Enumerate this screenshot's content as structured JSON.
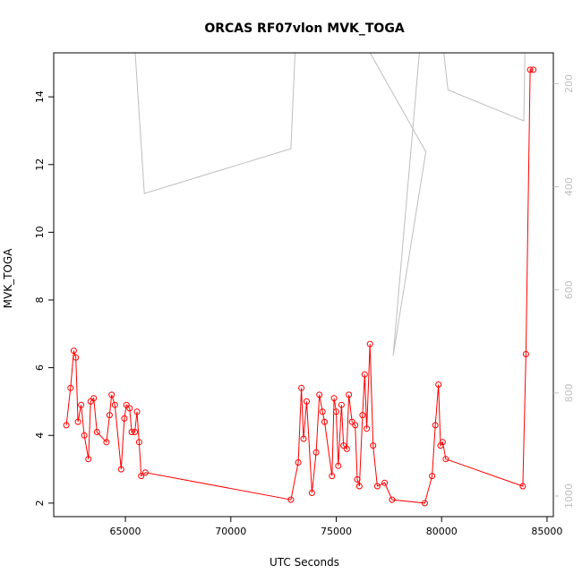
{
  "chart_data": {
    "type": "line",
    "title": "ORCAS RF07vlon MVK_TOGA",
    "xlabel": "UTC Seconds",
    "ylabel": "MVK_TOGA",
    "xlim": [
      61600,
      85300
    ],
    "ylim": [
      1.6,
      15.3
    ],
    "y2lim": [
      1040,
      140
    ],
    "x_ticks": [
      65000,
      70000,
      75000,
      80000,
      85000
    ],
    "y_ticks": [
      2,
      4,
      6,
      8,
      10,
      12,
      14
    ],
    "y2_ticks": [
      200,
      400,
      600,
      800,
      1000
    ],
    "grid": false,
    "series": [
      {
        "color": "#ff0000",
        "marker": "open-circle",
        "axis": "left",
        "points": [
          [
            62200,
            4.3
          ],
          [
            62400,
            5.4
          ],
          [
            62550,
            6.5
          ],
          [
            62650,
            6.3
          ],
          [
            62750,
            4.4
          ],
          [
            62900,
            4.9
          ],
          [
            63050,
            4.0
          ],
          [
            63250,
            3.3
          ],
          [
            63350,
            5.0
          ],
          [
            63500,
            5.1
          ],
          [
            63650,
            4.1
          ],
          [
            64100,
            3.8
          ],
          [
            64250,
            4.6
          ],
          [
            64350,
            5.2
          ],
          [
            64500,
            4.9
          ],
          [
            64800,
            3.0
          ],
          [
            64950,
            4.5
          ],
          [
            65050,
            4.9
          ],
          [
            65200,
            4.8
          ],
          [
            65300,
            4.1
          ],
          [
            65450,
            4.1
          ],
          [
            65550,
            4.7
          ],
          [
            65650,
            3.8
          ],
          [
            65750,
            2.8
          ],
          [
            65950,
            2.9
          ],
          [
            72850,
            2.1
          ],
          [
            73200,
            3.2
          ],
          [
            73350,
            5.4
          ],
          [
            73450,
            3.9
          ],
          [
            73600,
            5.0
          ],
          [
            73850,
            2.3
          ],
          [
            74050,
            3.5
          ],
          [
            74200,
            5.2
          ],
          [
            74350,
            4.7
          ],
          [
            74450,
            4.4
          ],
          [
            74800,
            2.8
          ],
          [
            74900,
            5.1
          ],
          [
            75000,
            4.7
          ],
          [
            75100,
            3.1
          ],
          [
            75250,
            4.9
          ],
          [
            75350,
            3.7
          ],
          [
            75500,
            3.6
          ],
          [
            75600,
            5.2
          ],
          [
            75750,
            4.4
          ],
          [
            75900,
            4.3
          ],
          [
            76000,
            2.7
          ],
          [
            76100,
            2.5
          ],
          [
            76250,
            4.6
          ],
          [
            76350,
            5.8
          ],
          [
            76450,
            4.2
          ],
          [
            76600,
            6.7
          ],
          [
            76750,
            3.7
          ],
          [
            76950,
            2.5
          ],
          [
            77300,
            2.6
          ],
          [
            77650,
            2.1
          ],
          [
            79200,
            2.0
          ],
          [
            79550,
            2.8
          ],
          [
            79700,
            4.3
          ],
          [
            79850,
            5.5
          ],
          [
            79950,
            3.7
          ],
          [
            80050,
            3.8
          ],
          [
            80200,
            3.3
          ],
          [
            83850,
            2.5
          ],
          [
            84000,
            6.4
          ],
          [
            84200,
            14.8
          ],
          [
            84350,
            14.8
          ]
        ]
      },
      {
        "color": "#bebebe",
        "marker": "none",
        "axis": "right",
        "points": [
          [
            65400,
            100
          ],
          [
            65900,
            413
          ],
          [
            72850,
            326
          ],
          [
            73300,
            -100
          ],
          [
            79250,
            332
          ],
          [
            77700,
            728
          ],
          [
            79450,
            -100
          ],
          [
            80300,
            212
          ],
          [
            83900,
            272
          ],
          [
            84050,
            -100
          ]
        ]
      }
    ]
  }
}
